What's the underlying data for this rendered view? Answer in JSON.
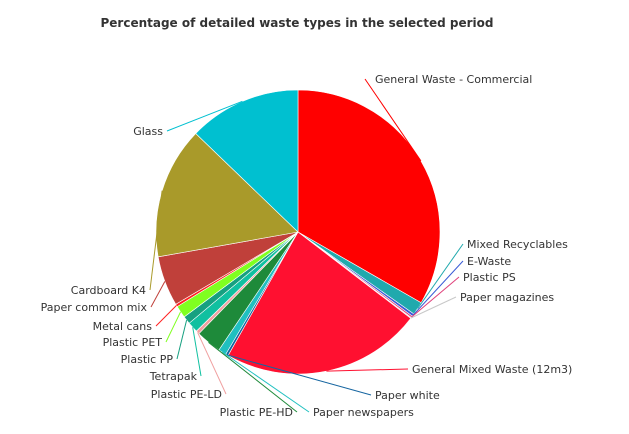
{
  "chart_data": {
    "type": "pie",
    "title": "Percentage of detailed waste types in the selected period",
    "legend": "none",
    "slices": [
      {
        "label": "General Waste - Commercial",
        "value": 33.3,
        "color": "#ff0000"
      },
      {
        "label": "Mixed Recyclables",
        "value": 1.5,
        "color": "#20a9ad"
      },
      {
        "label": "E-Waste",
        "value": 0.3,
        "color": "#3a5bd6"
      },
      {
        "label": "Plastic PS",
        "value": 0.2,
        "color": "#e0407a"
      },
      {
        "label": "Paper magazines",
        "value": 0.1,
        "color": "#c8c8c8"
      },
      {
        "label": "General Mixed Waste (12m3)",
        "value": 22.8,
        "color": "#ff1030"
      },
      {
        "label": "Paper white",
        "value": 0.3,
        "color": "#1565a0"
      },
      {
        "label": "Paper newspapers",
        "value": 0.9,
        "color": "#20c0c0"
      },
      {
        "label": "Plastic PE-HD",
        "value": 2.9,
        "color": "#1e8a3a"
      },
      {
        "label": "Plastic PE-LD",
        "value": 0.4,
        "color": "#f0a0a0"
      },
      {
        "label": "Tetrapak",
        "value": 1.2,
        "color": "#10c0a0"
      },
      {
        "label": "Plastic PP",
        "value": 0.9,
        "color": "#16a080"
      },
      {
        "label": "Plastic PET",
        "value": 1.4,
        "color": "#80ff20"
      },
      {
        "label": "Metal cans",
        "value": 0.3,
        "color": "#ff2020"
      },
      {
        "label": "Paper common mix",
        "value": 5.7,
        "color": "#c0403a"
      },
      {
        "label": "Cardboard K4",
        "value": 15.0,
        "color": "#a99a2a"
      },
      {
        "label": "Glass",
        "value": 12.8,
        "color": "#00c0d0"
      }
    ]
  }
}
